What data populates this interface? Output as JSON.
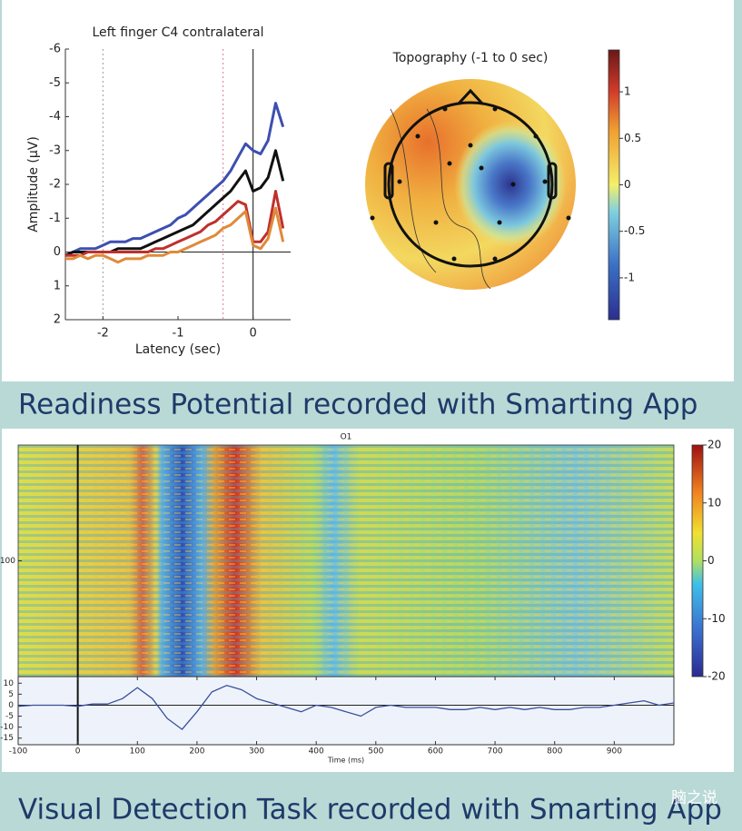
{
  "captions": [
    "Readiness Potential recorded with Smarting App",
    "Visual Detection Task recorded with Smarting App"
  ],
  "watermark": "脑之说",
  "chart_data": [
    {
      "type": "line",
      "title": "Left finger C4 contralateral",
      "xlabel": "Latency (sec)",
      "ylabel": "Amplitude (µV)",
      "x": [
        -2.5,
        -2.4,
        -2.3,
        -2.2,
        -2.1,
        -2.0,
        -1.9,
        -1.8,
        -1.7,
        -1.6,
        -1.5,
        -1.4,
        -1.3,
        -1.2,
        -1.1,
        -1.0,
        -0.9,
        -0.8,
        -0.7,
        -0.6,
        -0.5,
        -0.4,
        -0.3,
        -0.2,
        -0.1,
        0.0,
        0.1,
        0.2,
        0.3,
        0.4
      ],
      "series": [
        {
          "color": "#3d4fb0",
          "values": [
            0.1,
            0,
            -0.1,
            -0.1,
            -0.1,
            -0.2,
            -0.3,
            -0.3,
            -0.3,
            -0.4,
            -0.4,
            -0.5,
            -0.6,
            -0.7,
            -0.8,
            -1.0,
            -1.1,
            -1.3,
            -1.5,
            -1.7,
            -1.9,
            -2.1,
            -2.4,
            -2.8,
            -3.2,
            -3.0,
            -2.9,
            -3.3,
            -4.4,
            -3.7
          ]
        },
        {
          "color": "#111111",
          "values": [
            0.1,
            0,
            0,
            0,
            0,
            0,
            0,
            -0.1,
            -0.1,
            -0.1,
            -0.1,
            -0.2,
            -0.3,
            -0.4,
            -0.5,
            -0.6,
            -0.7,
            -0.8,
            -1.0,
            -1.2,
            -1.4,
            -1.6,
            -1.8,
            -2.1,
            -2.4,
            -1.8,
            -1.9,
            -2.2,
            -3.0,
            -2.1
          ]
        },
        {
          "color": "#c0302a",
          "values": [
            0.1,
            0.1,
            0.1,
            0,
            0,
            0,
            0,
            0,
            0,
            0,
            0,
            0,
            -0.1,
            -0.1,
            -0.2,
            -0.3,
            -0.4,
            -0.5,
            -0.6,
            -0.8,
            -0.9,
            -1.1,
            -1.3,
            -1.5,
            -1.4,
            -0.3,
            -0.3,
            -0.6,
            -1.8,
            -0.7
          ]
        },
        {
          "color": "#e08a3a",
          "values": [
            0.2,
            0.2,
            0.1,
            0.2,
            0.1,
            0.1,
            0.2,
            0.3,
            0.2,
            0.2,
            0.2,
            0.1,
            0.1,
            0.1,
            0,
            0,
            -0.1,
            -0.2,
            -0.3,
            -0.4,
            -0.5,
            -0.7,
            -0.8,
            -1.0,
            -1.2,
            -0.2,
            -0.1,
            -0.4,
            -1.3,
            -0.3
          ]
        }
      ],
      "xlim": [
        -2.5,
        0.5
      ],
      "ylim": [
        2,
        -6
      ],
      "xticks": [
        -2,
        -1,
        0
      ],
      "yticks": [
        -6,
        -5,
        -4,
        -3,
        -2,
        -1,
        0,
        1,
        2
      ],
      "vlines": [
        -2,
        -0.4
      ],
      "vline_colors": [
        "#999999",
        "#e07aa0"
      ]
    },
    {
      "type": "topography",
      "title": "Topography (-1 to 0 sec)",
      "clim": [
        -1.45,
        1.45
      ],
      "cticks": [
        1,
        0.5,
        0,
        -0.5,
        -1
      ]
    },
    {
      "type": "heatmap",
      "title": "O1",
      "xlim": [
        -100,
        1000
      ],
      "ylim": [
        0,
        200
      ],
      "yticks": [
        100
      ],
      "clim": [
        -20,
        20
      ],
      "cticks": [
        20,
        10,
        0,
        -10,
        -20
      ]
    },
    {
      "type": "line",
      "xlabel": "Time (ms)",
      "color": "#3a4f9a",
      "x": [
        -100,
        -75,
        -50,
        -25,
        0,
        25,
        50,
        75,
        100,
        125,
        150,
        175,
        200,
        225,
        250,
        275,
        300,
        325,
        350,
        375,
        400,
        425,
        450,
        475,
        500,
        525,
        550,
        575,
        600,
        625,
        650,
        675,
        700,
        725,
        750,
        775,
        800,
        825,
        850,
        875,
        900,
        925,
        950,
        975,
        1000
      ],
      "values": [
        -0.5,
        0,
        0,
        0,
        -0.5,
        0.5,
        0.5,
        3,
        8,
        3,
        -6,
        -11,
        -3,
        6,
        9,
        7,
        3,
        1,
        -1,
        -3,
        0,
        -1,
        -3,
        -5,
        -1,
        0,
        -1,
        -1,
        -1,
        -2,
        -2,
        -1,
        -2,
        -1,
        -2,
        -1,
        -2,
        -2,
        -1,
        -1,
        0,
        1,
        2,
        0,
        1
      ],
      "xlim": [
        -100,
        1000
      ],
      "ylim": [
        -18,
        13
      ],
      "xticks": [
        -100,
        0,
        100,
        200,
        300,
        400,
        500,
        600,
        700,
        800,
        900
      ],
      "yticks": [
        10,
        5,
        0,
        -5,
        -10,
        -15
      ]
    }
  ]
}
